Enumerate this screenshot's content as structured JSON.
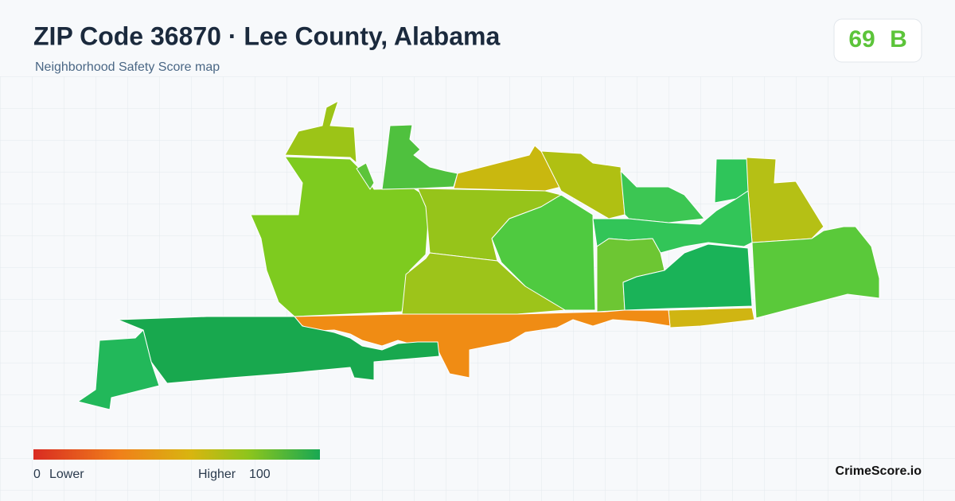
{
  "header": {
    "title": "ZIP Code 36870 · Lee County, Alabama",
    "subtitle": "Neighborhood Safety Score map"
  },
  "score": {
    "value": "69",
    "grade": "B"
  },
  "legend": {
    "min": "0",
    "min_label": "Lower",
    "max_label": "Higher",
    "max": "100"
  },
  "brand": "CrimeScore.io"
}
